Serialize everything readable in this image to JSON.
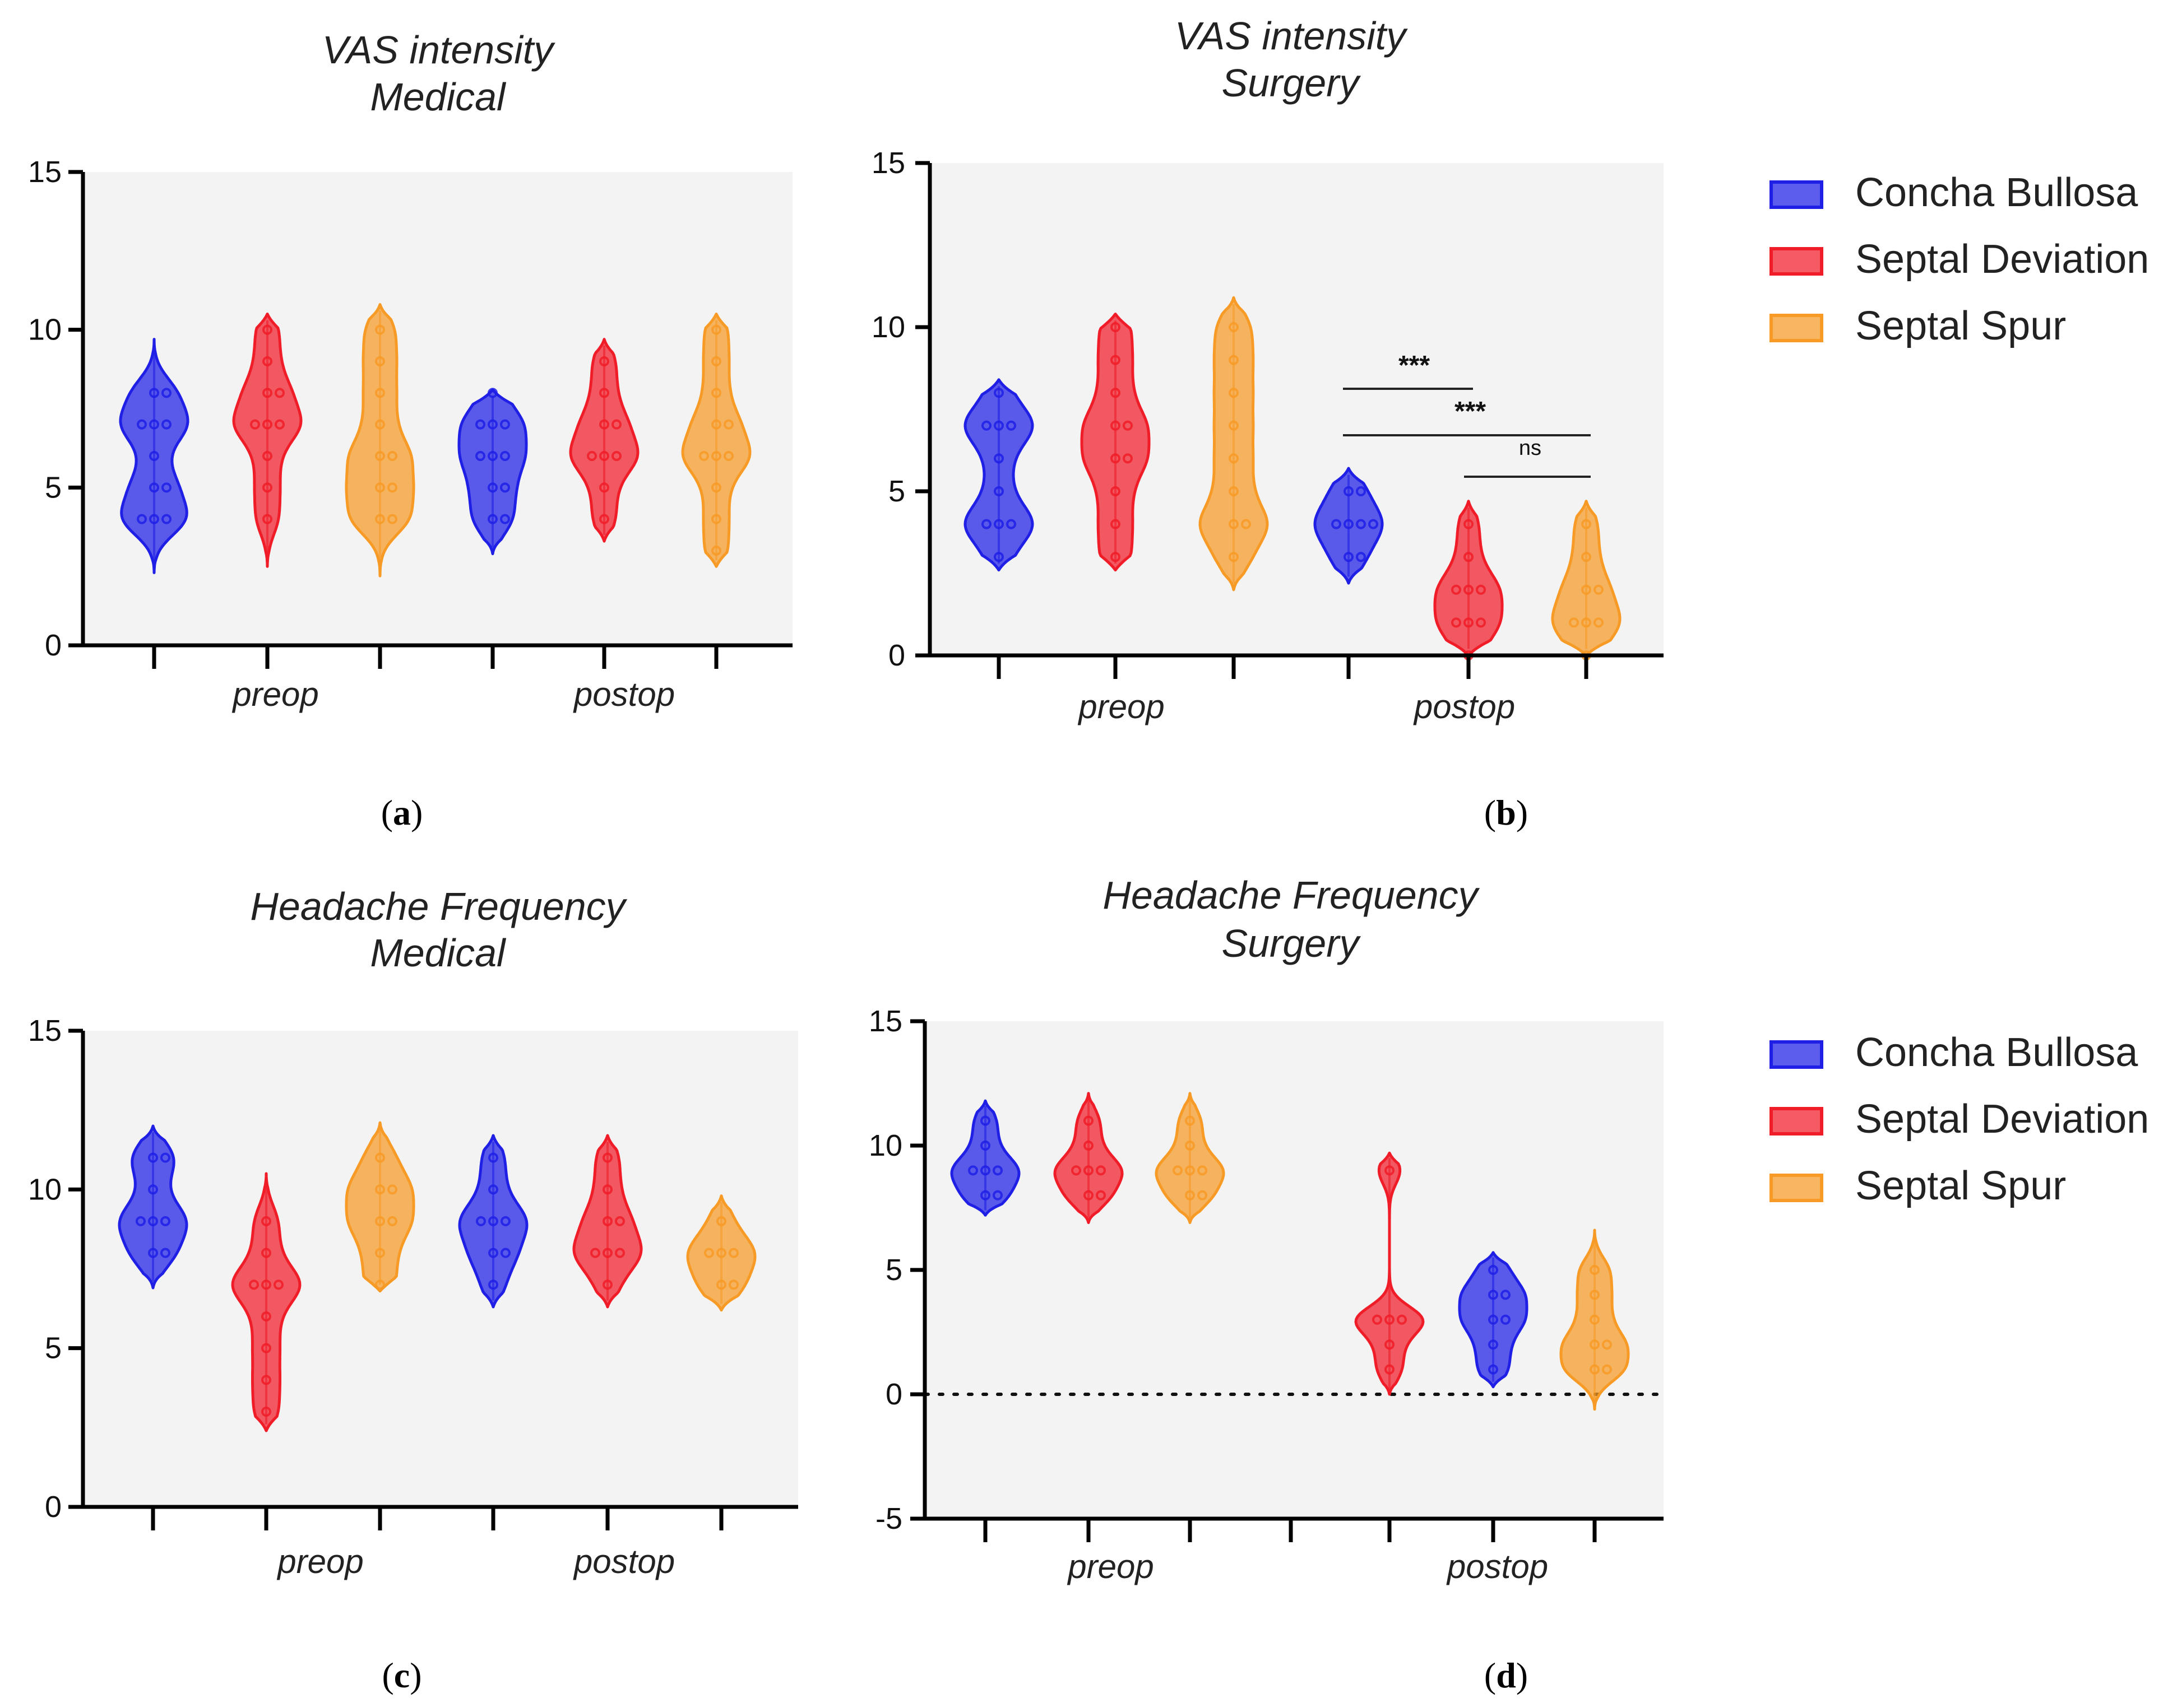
{
  "colors": {
    "concha_bullosa": "#1f1fe6",
    "septal_deviation": "#f01c28",
    "septal_spur": "#f79a26",
    "plot_bg": "#f3f3f3",
    "axis": "#000000"
  },
  "legend": {
    "items": [
      "Concha Bullosa",
      "Septal Deviation",
      "Septal Spur"
    ]
  },
  "chart_data": [
    {
      "type": "violin",
      "panel_label": "a",
      "title": "VAS intensity",
      "subtitle": "Medical",
      "xgroups": [
        "preop",
        "postop"
      ],
      "ylim": [
        0,
        15
      ],
      "yticks": [
        "0",
        "5",
        "10",
        "15"
      ],
      "violins": [
        {
          "group": "Concha Bullosa",
          "timepoint": "preop",
          "range": [
            2.3,
            9.7
          ],
          "points": [
            4,
            4,
            4,
            5,
            5,
            6,
            7,
            7,
            7,
            8,
            8
          ]
        },
        {
          "group": "Septal Deviation",
          "timepoint": "preop",
          "range": [
            2.5,
            10.5
          ],
          "points": [
            4,
            5,
            6,
            7,
            7,
            7,
            8,
            8,
            9,
            10
          ]
        },
        {
          "group": "Septal Spur",
          "timepoint": "preop",
          "range": [
            2.2,
            10.8
          ],
          "points": [
            4,
            4,
            5,
            5,
            6,
            6,
            7,
            8,
            9,
            10
          ]
        },
        {
          "group": "Concha Bullosa",
          "timepoint": "postop",
          "range": [
            2.9,
            8.1
          ],
          "points": [
            4,
            4,
            5,
            5,
            6,
            6,
            6,
            7,
            7,
            7,
            8
          ]
        },
        {
          "group": "Septal Deviation",
          "timepoint": "postop",
          "range": [
            3.3,
            9.7
          ],
          "points": [
            4,
            5,
            6,
            6,
            6,
            7,
            7,
            8,
            9
          ]
        },
        {
          "group": "Septal Spur",
          "timepoint": "postop",
          "range": [
            2.5,
            10.5
          ],
          "points": [
            3,
            4,
            5,
            6,
            6,
            6,
            7,
            7,
            8,
            9,
            10
          ]
        }
      ],
      "annotations": []
    },
    {
      "type": "violin",
      "panel_label": "b",
      "title": "VAS intensity",
      "subtitle": "Surgery",
      "xgroups": [
        "preop",
        "postop"
      ],
      "ylim": [
        0,
        15
      ],
      "yticks": [
        "0",
        "5",
        "10",
        "15"
      ],
      "violins": [
        {
          "group": "Concha Bullosa",
          "timepoint": "preop",
          "range": [
            2.6,
            8.4
          ],
          "points": [
            3,
            4,
            4,
            4,
            5,
            6,
            7,
            7,
            7,
            8
          ]
        },
        {
          "group": "Septal Deviation",
          "timepoint": "preop",
          "range": [
            2.6,
            10.4
          ],
          "points": [
            3,
            4,
            5,
            6,
            6,
            7,
            7,
            8,
            9,
            10
          ]
        },
        {
          "group": "Septal Spur",
          "timepoint": "preop",
          "range": [
            2.0,
            10.9
          ],
          "points": [
            3,
            4,
            4,
            5,
            6,
            7,
            8,
            9,
            10
          ]
        },
        {
          "group": "Concha Bullosa",
          "timepoint": "postop",
          "range": [
            2.2,
            5.7
          ],
          "points": [
            3,
            3,
            4,
            4,
            4,
            4,
            5,
            5
          ]
        },
        {
          "group": "Septal Deviation",
          "timepoint": "postop",
          "range": [
            0,
            4.7
          ],
          "points": [
            0,
            1,
            1,
            1,
            2,
            2,
            2,
            3,
            4
          ]
        },
        {
          "group": "Septal Spur",
          "timepoint": "postop",
          "range": [
            0,
            4.7
          ],
          "points": [
            0,
            1,
            1,
            1,
            2,
            2,
            3,
            4
          ]
        }
      ],
      "annotations": [
        {
          "label": "***",
          "from": "Concha Bullosa postop",
          "to": "Septal Deviation postop"
        },
        {
          "label": "***",
          "from": "Concha Bullosa postop",
          "to": "Septal Spur postop"
        },
        {
          "label": "ns",
          "from": "Septal Deviation postop",
          "to": "Septal Spur postop"
        }
      ]
    },
    {
      "type": "violin",
      "panel_label": "c",
      "title": "Headache Frequency",
      "subtitle": "Medical",
      "xgroups": [
        "preop",
        "postop"
      ],
      "ylim": [
        0,
        15
      ],
      "yticks": [
        "0",
        "5",
        "10",
        "15"
      ],
      "violins": [
        {
          "group": "Concha Bullosa",
          "timepoint": "preop",
          "range": [
            6.9,
            12.0
          ],
          "points": [
            8,
            8,
            9,
            9,
            9,
            10,
            11,
            11
          ]
        },
        {
          "group": "Septal Deviation",
          "timepoint": "preop",
          "range": [
            2.4,
            10.5
          ],
          "points": [
            3,
            4,
            5,
            6,
            7,
            7,
            7,
            8,
            9
          ]
        },
        {
          "group": "Septal Spur",
          "timepoint": "preop",
          "range": [
            6.8,
            12.1
          ],
          "points": [
            7,
            8,
            9,
            9,
            10,
            10,
            11
          ]
        },
        {
          "group": "Concha Bullosa",
          "timepoint": "postop",
          "range": [
            6.3,
            11.7
          ],
          "points": [
            7,
            8,
            8,
            9,
            9,
            9,
            10,
            11
          ]
        },
        {
          "group": "Septal Deviation",
          "timepoint": "postop",
          "range": [
            6.3,
            11.7
          ],
          "points": [
            7,
            8,
            8,
            8,
            9,
            9,
            10,
            11
          ]
        },
        {
          "group": "Septal Spur",
          "timepoint": "postop",
          "range": [
            6.2,
            9.8
          ],
          "points": [
            7,
            7,
            8,
            8,
            8,
            9
          ]
        }
      ],
      "annotations": []
    },
    {
      "type": "violin",
      "panel_label": "d",
      "title": "Headache  Frequency",
      "subtitle": "Surgery",
      "xgroups": [
        "preop",
        "postop"
      ],
      "ylim": [
        -5,
        15
      ],
      "yticks": [
        "-5",
        "0",
        "5",
        "10",
        "15"
      ],
      "reference_line": 0,
      "violins": [
        {
          "group": "Concha Bullosa",
          "timepoint": "preop",
          "range": [
            7.2,
            11.8
          ],
          "points": [
            8,
            8,
            9,
            9,
            9,
            10,
            11
          ]
        },
        {
          "group": "Septal Deviation",
          "timepoint": "preop",
          "range": [
            6.9,
            12.1
          ],
          "points": [
            8,
            8,
            9,
            9,
            9,
            10,
            11
          ]
        },
        {
          "group": "Septal Spur",
          "timepoint": "preop",
          "range": [
            6.9,
            12.1
          ],
          "points": [
            8,
            8,
            9,
            9,
            9,
            10,
            11
          ]
        },
        {
          "group": "Septal Deviation",
          "timepoint": "postop",
          "range": [
            0,
            9.7
          ],
          "points": [
            1,
            2,
            3,
            3,
            3,
            9
          ]
        },
        {
          "group": "Concha Bullosa",
          "timepoint": "postop",
          "range": [
            0.3,
            5.7
          ],
          "points": [
            1,
            2,
            3,
            3,
            4,
            4,
            5
          ]
        },
        {
          "group": "Septal Spur",
          "timepoint": "postop",
          "range": [
            -0.6,
            6.6
          ],
          "points": [
            1,
            1,
            2,
            2,
            3,
            4,
            5
          ]
        }
      ],
      "annotations": []
    }
  ]
}
